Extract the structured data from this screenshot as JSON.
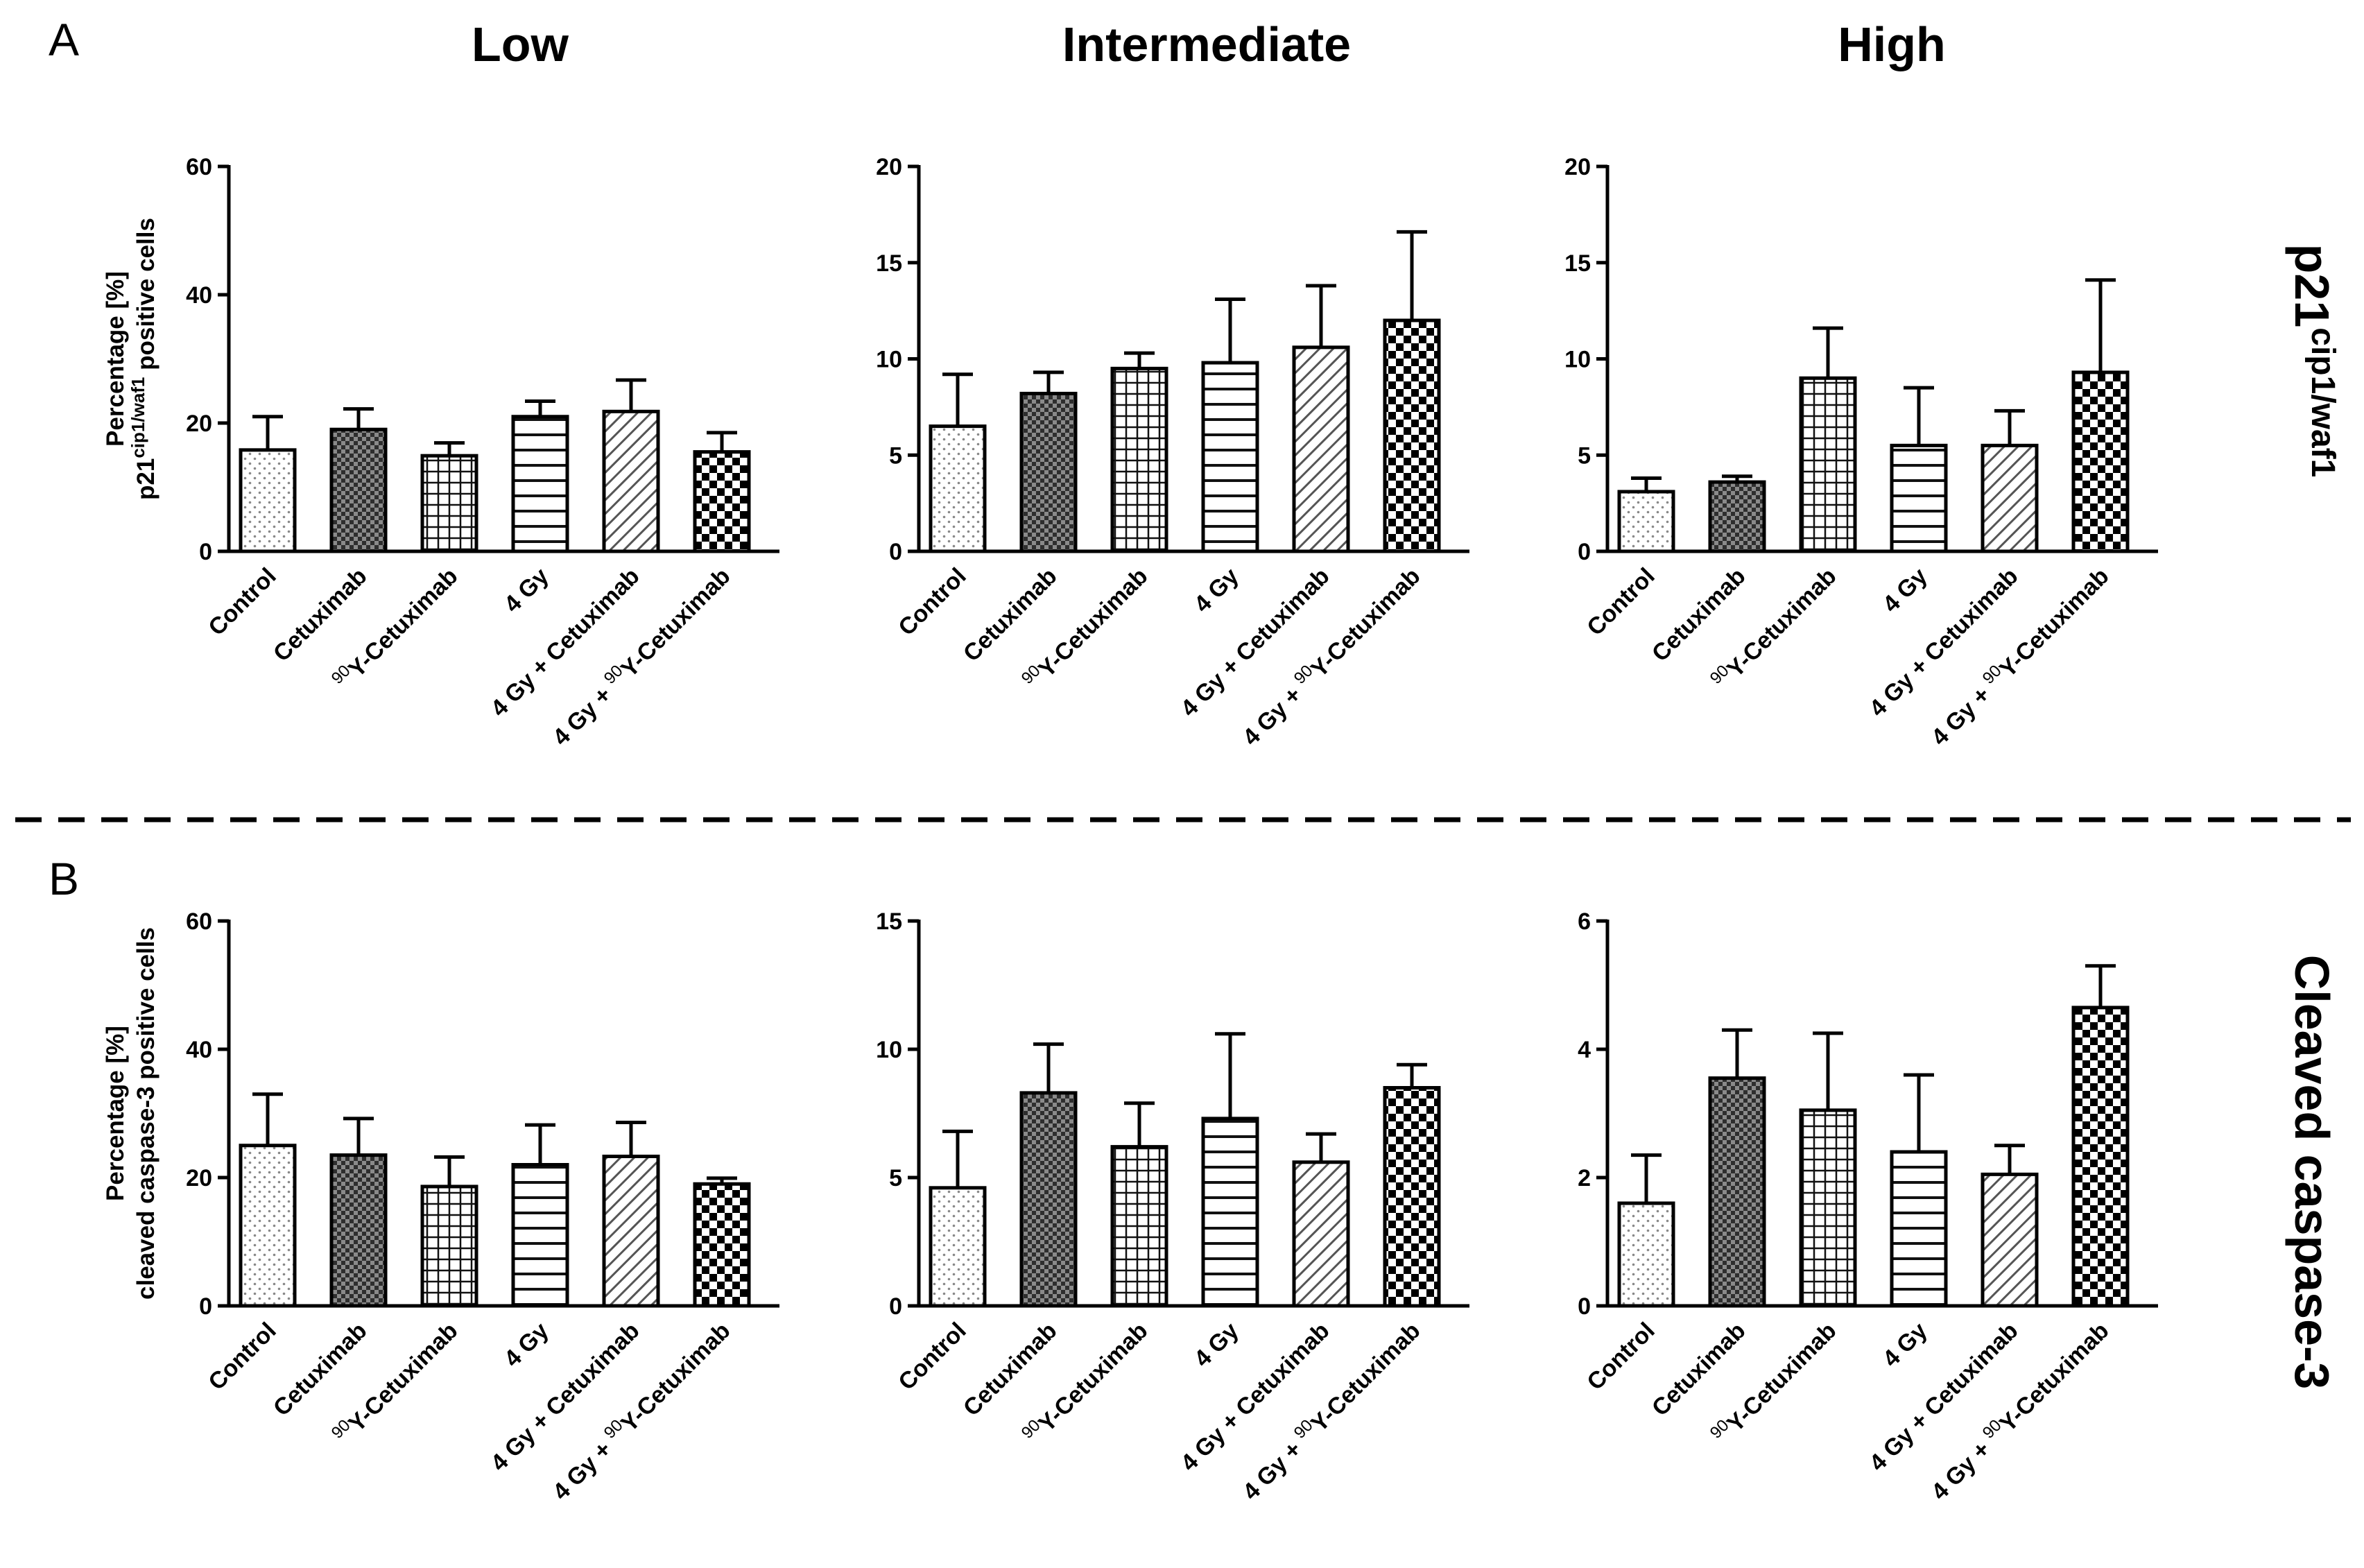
{
  "figure": {
    "column_titles": [
      "Low",
      "Intermediate",
      "High"
    ],
    "panel_letters": [
      "A",
      "B"
    ],
    "row_labels": [
      {
        "main": "p21",
        "sup": "cip1/waf1"
      },
      {
        "main": "Cleaved caspase-3",
        "sup": ""
      }
    ]
  },
  "categories": [
    {
      "pre": "",
      "sup": "",
      "post": "Control"
    },
    {
      "pre": "",
      "sup": "",
      "post": "Cetuximab"
    },
    {
      "pre": "",
      "sup": "90",
      "post": "Y-Cetuximab"
    },
    {
      "pre": "",
      "sup": "",
      "post": "4 Gy"
    },
    {
      "pre": "4 Gy + Cetuximab",
      "sup": "",
      "post": ""
    },
    {
      "pre": "4 Gy + ",
      "sup": "90",
      "post": "Y-Cetuximab"
    }
  ],
  "patterns": [
    "dots",
    "dense-check",
    "grid",
    "horizontal",
    "diagonal",
    "checkerboard"
  ],
  "ylabels": {
    "A": {
      "line1": "Percentage [%]",
      "line2_pre": "p21",
      "line2_sup": "cip1/waf1",
      "line2_post": " positive cells"
    },
    "B": {
      "line1": "Percentage [%]",
      "line2_pre": "cleaved caspase-3 positive cells",
      "line2_sup": "",
      "line2_post": ""
    }
  },
  "chart_data": [
    {
      "type": "bar",
      "row": "A",
      "title": "Low",
      "ylim": [
        0,
        60
      ],
      "yticks": [
        0,
        20,
        40,
        60
      ],
      "categories": [
        "Control",
        "Cetuximab",
        "90Y-Cetuximab",
        "4 Gy",
        "4 Gy + Cetuximab",
        "4 Gy + 90Y-Cetuximab"
      ],
      "values": [
        15.8,
        19.0,
        14.9,
        21.0,
        21.8,
        15.5
      ],
      "errors": [
        5.2,
        3.2,
        2.0,
        2.4,
        4.9,
        3.0
      ]
    },
    {
      "type": "bar",
      "row": "A",
      "title": "Intermediate",
      "ylim": [
        0,
        20
      ],
      "yticks": [
        0,
        5,
        10,
        15,
        20
      ],
      "categories": [
        "Control",
        "Cetuximab",
        "90Y-Cetuximab",
        "4 Gy",
        "4 Gy + Cetuximab",
        "4 Gy + 90Y-Cetuximab"
      ],
      "values": [
        6.5,
        8.2,
        9.5,
        9.8,
        10.6,
        12.0
      ],
      "errors": [
        2.7,
        1.1,
        0.8,
        3.3,
        3.2,
        4.6
      ]
    },
    {
      "type": "bar",
      "row": "A",
      "title": "High",
      "ylim": [
        0,
        20
      ],
      "yticks": [
        0,
        5,
        10,
        15,
        20
      ],
      "categories": [
        "Control",
        "Cetuximab",
        "90Y-Cetuximab",
        "4 Gy",
        "4 Gy + Cetuximab",
        "4 Gy + 90Y-Cetuximab"
      ],
      "values": [
        3.1,
        3.6,
        9.0,
        5.5,
        5.5,
        9.3
      ],
      "errors": [
        0.7,
        0.3,
        2.6,
        3.0,
        1.8,
        4.8
      ]
    },
    {
      "type": "bar",
      "row": "B",
      "title": "Low",
      "ylim": [
        0,
        60
      ],
      "yticks": [
        0,
        20,
        40,
        60
      ],
      "categories": [
        "Control",
        "Cetuximab",
        "90Y-Cetuximab",
        "4 Gy",
        "4 Gy + Cetuximab",
        "4 Gy + 90Y-Cetuximab"
      ],
      "values": [
        25.0,
        23.5,
        18.6,
        22.0,
        23.3,
        19.0
      ],
      "errors": [
        8.0,
        5.7,
        4.6,
        6.2,
        5.3,
        0.9
      ]
    },
    {
      "type": "bar",
      "row": "B",
      "title": "Intermediate",
      "ylim": [
        0,
        15
      ],
      "yticks": [
        0,
        5,
        10,
        15
      ],
      "categories": [
        "Control",
        "Cetuximab",
        "90Y-Cetuximab",
        "4 Gy",
        "4 Gy + Cetuximab",
        "4 Gy + 90Y-Cetuximab"
      ],
      "values": [
        4.6,
        8.3,
        6.2,
        7.3,
        5.6,
        8.5
      ],
      "errors": [
        2.2,
        1.9,
        1.7,
        3.3,
        1.1,
        0.9
      ]
    },
    {
      "type": "bar",
      "row": "B",
      "title": "High",
      "ylim": [
        0,
        6
      ],
      "yticks": [
        0,
        2,
        4,
        6
      ],
      "categories": [
        "Control",
        "Cetuximab",
        "90Y-Cetuximab",
        "4 Gy",
        "4 Gy + Cetuximab",
        "4 Gy + 90Y-Cetuximab"
      ],
      "values": [
        1.6,
        3.55,
        3.05,
        2.4,
        2.05,
        4.65
      ],
      "errors": [
        0.75,
        0.75,
        1.2,
        1.2,
        0.45,
        0.65
      ]
    }
  ]
}
